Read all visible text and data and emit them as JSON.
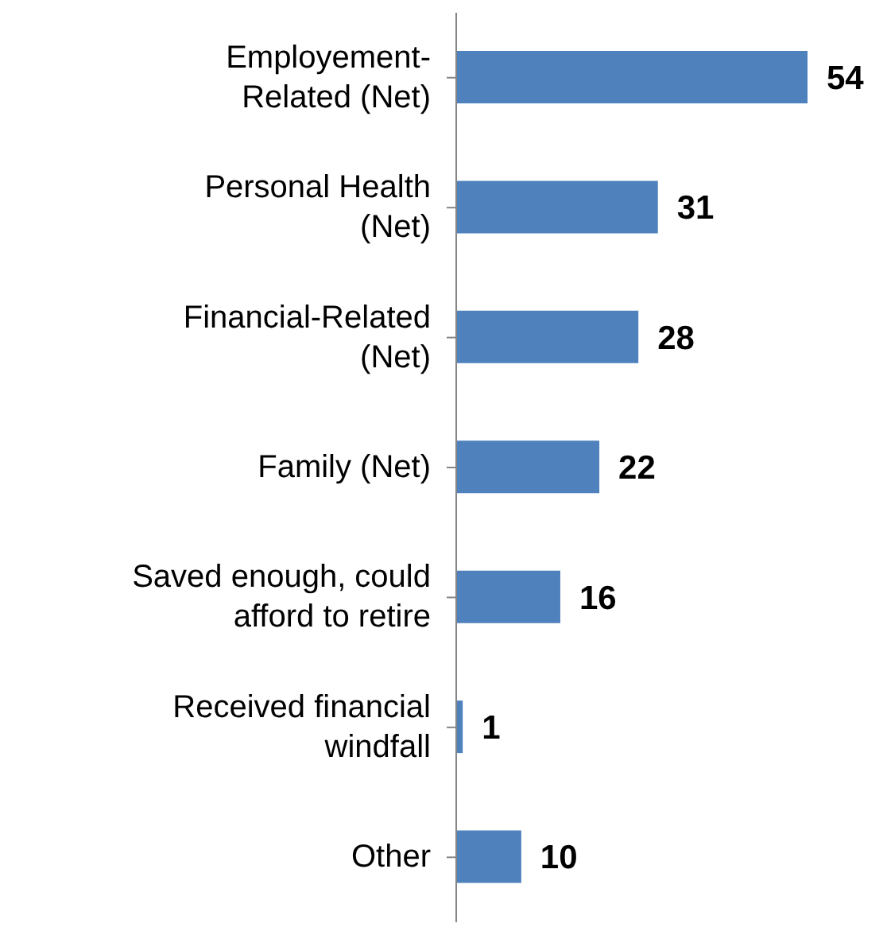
{
  "chart_data": {
    "type": "bar",
    "orientation": "horizontal",
    "categories": [
      "Employement-\nRelated (Net)",
      "Personal Health\n(Net)",
      "Financial-Related\n(Net)",
      "Family (Net)",
      "Saved enough, could\nafford to retire",
      "Received financial\nwindfall",
      "Other"
    ],
    "values": [
      54,
      31,
      28,
      22,
      16,
      1,
      10
    ],
    "color": "#4f81bd",
    "data_labels": true,
    "grid": false,
    "legend": false
  }
}
